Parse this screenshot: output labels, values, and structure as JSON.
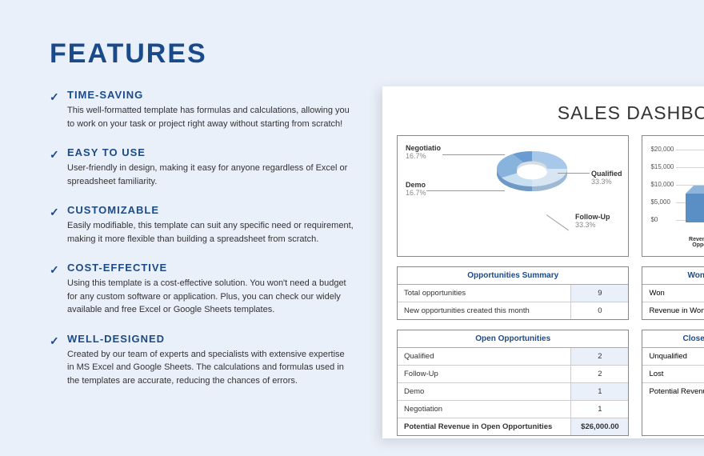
{
  "page": {
    "title": "FEATURES"
  },
  "features": [
    {
      "title": "TIME-SAVING",
      "desc": "This well-formatted template has formulas and calculations, allowing you to work on your task or project right away without starting from scratch!"
    },
    {
      "title": "EASY TO USE",
      "desc": "User-friendly in design, making it easy for anyone regardless of Excel or spreadsheet familiarity."
    },
    {
      "title": "CUSTOMIZABLE",
      "desc": "Easily modifiable, this template can suit any specific need or requirement, making it more flexible than building a spreadsheet from scratch."
    },
    {
      "title": "COST-EFFECTIVE",
      "desc": "Using this template is a cost-effective solution. You won't need a budget for any custom software or application. Plus, you can check our widely available and free Excel or Google Sheets templates."
    },
    {
      "title": "WELL-DESIGNED",
      "desc": "Created by our team of experts and specialists with extensive expertise in MS Excel and Google Sheets. The calculations and formulas used in the templates are accurate, reducing the chances of errors."
    }
  ],
  "dashboard": {
    "title": "SALES DASHBOARD",
    "donut": {
      "segments": [
        {
          "label": "Negotiatio",
          "pct": "16.7%",
          "color": "#6a9bd1"
        },
        {
          "label": "Demo",
          "pct": "16.7%",
          "color": "#c8dff2"
        },
        {
          "label": "Qualified",
          "pct": "33.3%",
          "color": "#a7c8e8"
        },
        {
          "label": "Follow-Up",
          "pct": "33.3%",
          "color": "#d8e6f3"
        }
      ]
    },
    "bar": {
      "yticks": [
        "$20,000",
        "$15,000",
        "$10,000",
        "$5,000",
        "$0"
      ],
      "xlabel": "Revenue in Won Opportunities",
      "color_top": "#8fb4d9",
      "color_front": "#5a8fc5",
      "color_side": "#3d6fa3"
    },
    "opp_summary": {
      "header": "Opportunities Summary",
      "rows": [
        {
          "label": "Total opportunities",
          "val": "9"
        },
        {
          "label": "New opportunities created this month",
          "val": "0"
        }
      ]
    },
    "won": {
      "header": "Won",
      "rows": [
        {
          "label": "Won"
        },
        {
          "label": "Revenue in Won Opportunities"
        }
      ]
    },
    "open": {
      "header": "Open Opportunities",
      "rows": [
        {
          "label": "Qualified",
          "val": "2"
        },
        {
          "label": "Follow-Up",
          "val": "2"
        },
        {
          "label": "Demo",
          "val": "1"
        },
        {
          "label": "Negotiation",
          "val": "1"
        },
        {
          "label": "Potential Revenue in Open Opportunities",
          "val": "$26,000.00",
          "bold": true
        }
      ]
    },
    "closed": {
      "header": "Closed",
      "rows": [
        {
          "label": "Unqualified"
        },
        {
          "label": "Lost"
        },
        {
          "label": "Potential Revenue in Closed"
        }
      ]
    }
  },
  "colors": {
    "background": "#eaf0f9",
    "accent": "#1a4a8a"
  }
}
